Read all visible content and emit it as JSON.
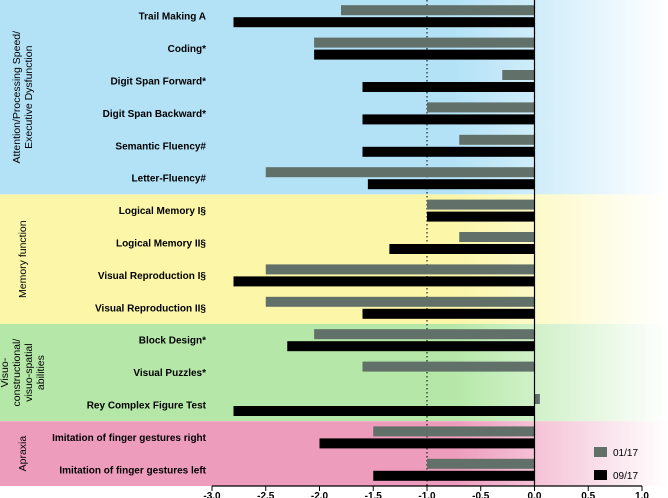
{
  "chart_data": {
    "type": "bar",
    "orientation": "horizontal",
    "xlim": [
      -3.0,
      1.0
    ],
    "x_ticks": [
      "-3.0",
      "-2.5",
      "-2.0",
      "-1.5",
      "-1.0",
      "-0.5",
      "0.0",
      "0.5",
      "1.0"
    ],
    "reference_line": -1.0,
    "categories": [
      "Trail Making A",
      "Coding*",
      "Digit Span Forward*",
      "Digit Span Backward*",
      "Semantic Fluency#",
      "Letter-Fluency#",
      "Logical Memory I§",
      "Logical Memory II§",
      "Visual Reproduction I§",
      "Visual Reproduction II§",
      "Block Design*",
      "Visual Puzzles*",
      "Rey Complex Figure Test",
      "Imitation of finger gestures right",
      "Imitation of finger gestures left"
    ],
    "series": [
      {
        "name": "01/17",
        "color": "#617068",
        "values": [
          -1.8,
          -2.05,
          -0.3,
          -1.0,
          -0.7,
          -2.5,
          -1.0,
          -0.7,
          -2.5,
          -2.5,
          -2.05,
          -1.6,
          0.05,
          -1.5,
          -1.0
        ]
      },
      {
        "name": "09/17",
        "color": "#000000",
        "values": [
          -2.8,
          -2.05,
          -1.6,
          -1.6,
          -1.6,
          -1.55,
          -1.0,
          -1.35,
          -2.8,
          -1.6,
          -2.3,
          0.0,
          -2.8,
          -2.0,
          -1.5
        ]
      }
    ],
    "groups": [
      {
        "label": "Attention/Processing Speed/\nExecutive Dysfunction",
        "start": 0,
        "end": 5,
        "color": "#b3e2f7"
      },
      {
        "label": "Memory function",
        "start": 6,
        "end": 9,
        "color": "#fbf6a8"
      },
      {
        "label": "Visuo-\nconstructional/\nvisuo-spatial\nabilities",
        "start": 10,
        "end": 12,
        "color": "#b5e8a8"
      },
      {
        "label": "Apraxia",
        "start": 13,
        "end": 14,
        "color": "#ee9cbc"
      }
    ],
    "legend_position": "bottom-right"
  }
}
